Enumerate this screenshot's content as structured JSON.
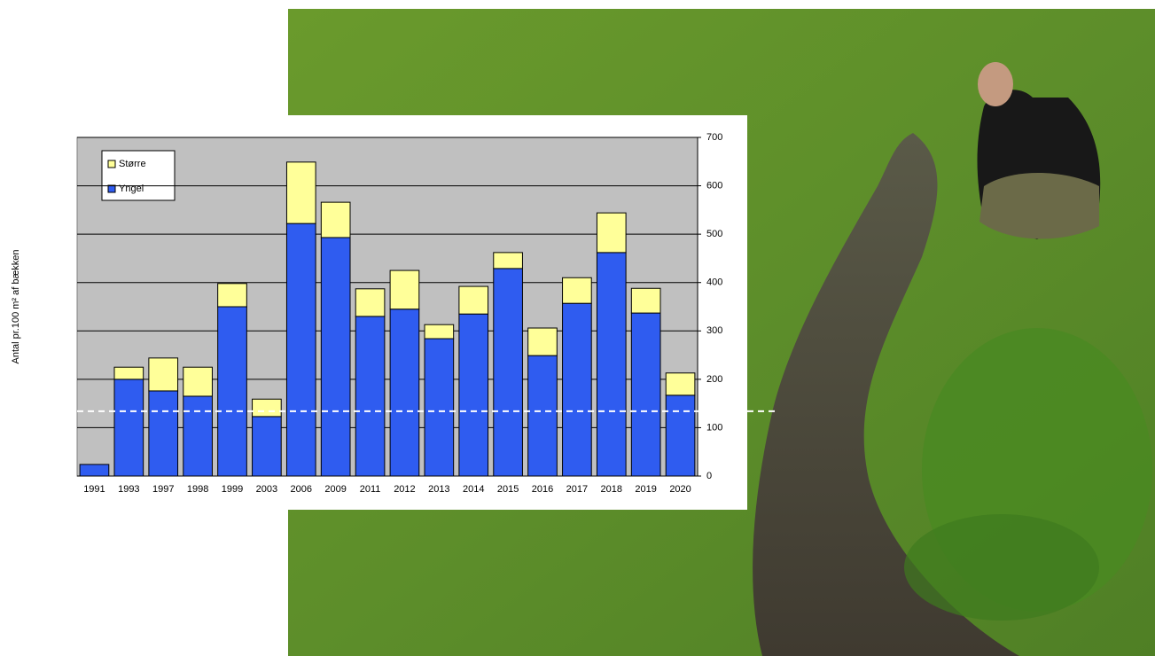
{
  "chart_data": {
    "type": "stacked-bar",
    "y_label": "Antal pr.100 m² af bækken",
    "categories": [
      "1991",
      "1993",
      "1997",
      "1998",
      "1999",
      "2003",
      "2006",
      "2009",
      "2011",
      "2012",
      "2013",
      "2014",
      "2015",
      "2016",
      "2017",
      "2018",
      "2019",
      "2020"
    ],
    "series": [
      {
        "name": "Yngel",
        "color": "#2f5cf0",
        "values": [
          24,
          200,
          176,
          165,
          350,
          123,
          522,
          493,
          330,
          345,
          284,
          335,
          429,
          249,
          357,
          462,
          337,
          167
        ]
      },
      {
        "name": "Større",
        "color": "#ffff99",
        "values": [
          0,
          25,
          68,
          60,
          48,
          36,
          127,
          73,
          57,
          80,
          29,
          57,
          33,
          57,
          53,
          82,
          51,
          46
        ]
      }
    ],
    "reference_line": 134,
    "ylim": [
      0,
      700
    ],
    "yticks": [
      0,
      100,
      200,
      300,
      400,
      500,
      600,
      700
    ],
    "grid": true,
    "legend": "top-left"
  }
}
